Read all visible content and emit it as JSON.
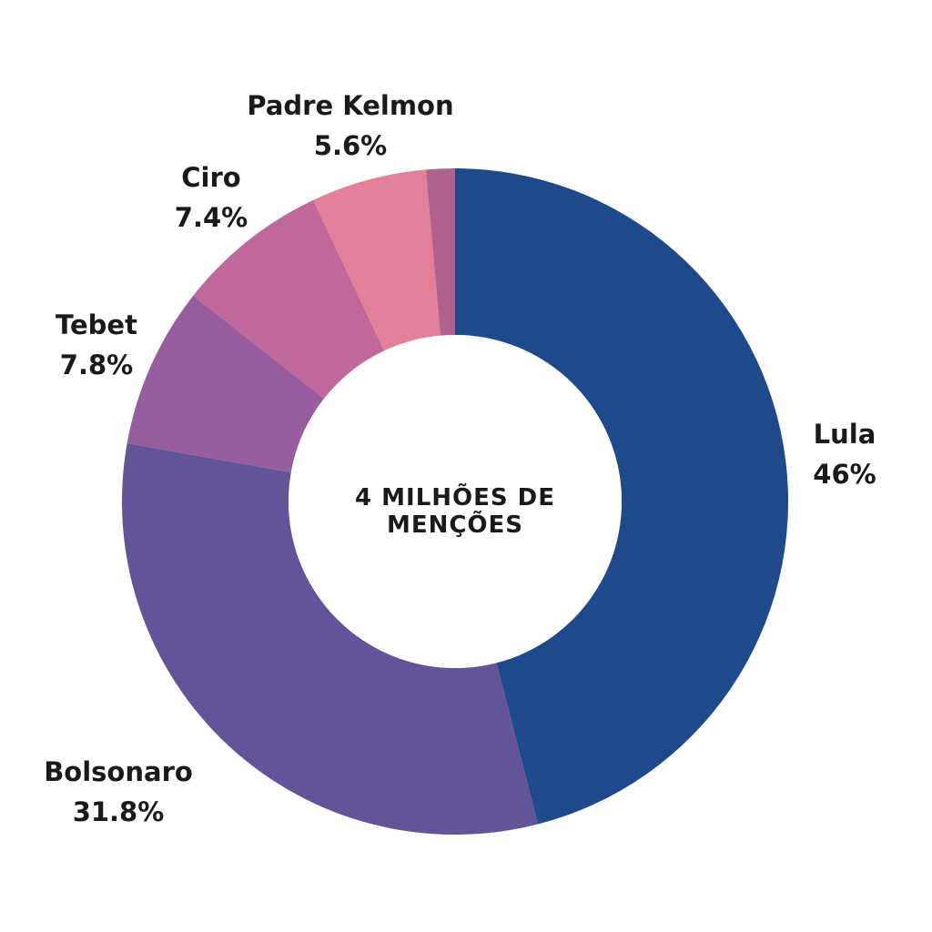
{
  "chart_data": {
    "type": "pie",
    "style": "donut",
    "center_label": [
      "4 MILHÕES DE",
      "MENÇÕES"
    ],
    "start": "top",
    "direction": "clockwise",
    "slices": [
      {
        "name": "Lula",
        "value": 46,
        "value_label": "46%",
        "color": "#1e4a8c"
      },
      {
        "name": "Bolsonaro",
        "value": 31.8,
        "value_label": "31.8%",
        "color": "#635398"
      },
      {
        "name": "Tebet",
        "value": 7.8,
        "value_label": "7.8%",
        "color": "#975d9f"
      },
      {
        "name": "Ciro",
        "value": 7.4,
        "value_label": "7.4%",
        "color": "#bf6899"
      },
      {
        "name": "Padre Kelmon",
        "value": 5.6,
        "value_label": "5.6%",
        "color": "#e27f99"
      },
      {
        "name": "",
        "value": 1.4,
        "value_label": "",
        "color": "#b0628f"
      }
    ]
  }
}
